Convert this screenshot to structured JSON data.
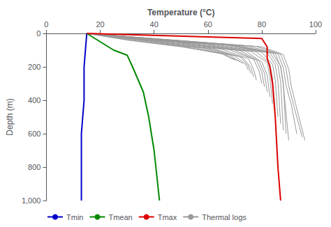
{
  "chart_data": {
    "type": "line",
    "xlabel": "Temperature (°C)",
    "ylabel": "Depth (m)",
    "xlim": [
      0,
      100
    ],
    "ylim": [
      0,
      1000
    ],
    "xticks": [
      0,
      20,
      40,
      60,
      80,
      100
    ],
    "yticks": [
      0,
      200,
      400,
      600,
      800,
      {
        "value": 1000,
        "label": "1,000"
      }
    ],
    "log": false,
    "grid": false,
    "legend": "lower left",
    "series": [
      {
        "name": "Tmin",
        "color": "#0000CC",
        "x": [
          15,
          14,
          14,
          13,
          13,
          13
        ],
        "values": [
          0,
          200,
          400,
          600,
          800,
          1000
        ]
      },
      {
        "name": "Tmean",
        "color": "#008800",
        "x": [
          15,
          25,
          30,
          32,
          36,
          38,
          40,
          42
        ],
        "values": [
          0,
          100,
          130,
          200,
          350,
          500,
          700,
          1000
        ]
      },
      {
        "name": "Tmax",
        "color": "#DD0000",
        "x": [
          15,
          80,
          82,
          82,
          83,
          84,
          85,
          86,
          87
        ],
        "values": [
          0,
          30,
          80,
          150,
          200,
          300,
          500,
          800,
          1000
        ]
      },
      {
        "name": "Thermal logs",
        "color": "#999999",
        "x": [
          15,
          30,
          50,
          65,
          70
        ],
        "values": [
          0,
          40,
          80,
          120,
          160
        ]
      },
      {
        "name": "Thermal logs",
        "color": "#999999",
        "x": [
          15,
          32,
          52,
          66,
          72
        ],
        "values": [
          0,
          42,
          82,
          125,
          170
        ]
      },
      {
        "name": "Thermal logs",
        "color": "#999999",
        "x": [
          15,
          35,
          55,
          68,
          73
        ],
        "values": [
          0,
          44,
          85,
          130,
          180
        ]
      },
      {
        "name": "Thermal logs",
        "color": "#999999",
        "x": [
          15,
          38,
          58,
          70,
          74,
          75
        ],
        "values": [
          0,
          46,
          88,
          135,
          185,
          220
        ]
      },
      {
        "name": "Thermal logs",
        "color": "#999999",
        "x": [
          15,
          40,
          60,
          72,
          75,
          76
        ],
        "values": [
          0,
          48,
          90,
          140,
          195,
          240
        ]
      },
      {
        "name": "Thermal logs",
        "color": "#999999",
        "x": [
          15,
          42,
          62,
          73,
          76,
          77
        ],
        "values": [
          0,
          50,
          92,
          145,
          205,
          260
        ]
      },
      {
        "name": "Thermal logs",
        "color": "#999999",
        "x": [
          15,
          45,
          65,
          75,
          77,
          78
        ],
        "values": [
          0,
          52,
          95,
          150,
          215,
          280
        ]
      },
      {
        "name": "Thermal logs",
        "color": "#999999",
        "x": [
          15,
          48,
          68,
          77,
          79,
          80
        ],
        "values": [
          0,
          54,
          98,
          155,
          225,
          300
        ]
      },
      {
        "name": "Thermal logs",
        "color": "#999999",
        "x": [
          15,
          50,
          70,
          78,
          80,
          81
        ],
        "values": [
          0,
          56,
          100,
          160,
          230,
          320
        ]
      },
      {
        "name": "Thermal logs",
        "color": "#999999",
        "x": [
          15,
          52,
          72,
          79,
          81,
          82
        ],
        "values": [
          0,
          58,
          103,
          165,
          240,
          350
        ]
      },
      {
        "name": "Thermal logs",
        "color": "#999999",
        "x": [
          15,
          55,
          74,
          80,
          82,
          83
        ],
        "values": [
          0,
          60,
          106,
          170,
          250,
          380
        ]
      },
      {
        "name": "Thermal logs",
        "color": "#999999",
        "x": [
          15,
          58,
          76,
          82,
          83,
          84
        ],
        "values": [
          0,
          62,
          108,
          175,
          260,
          420
        ]
      },
      {
        "name": "Thermal logs",
        "color": "#999999",
        "x": [
          15,
          60,
          78,
          83,
          84,
          85
        ],
        "values": [
          0,
          64,
          110,
          180,
          270,
          460
        ]
      },
      {
        "name": "Thermal logs",
        "color": "#999999",
        "x": [
          15,
          63,
          80,
          84,
          85,
          86
        ],
        "values": [
          0,
          66,
          112,
          185,
          280,
          500
        ]
      },
      {
        "name": "Thermal logs",
        "color": "#999999",
        "x": [
          15,
          66,
          82,
          85,
          86,
          87
        ],
        "values": [
          0,
          68,
          114,
          188,
          285,
          540
        ]
      },
      {
        "name": "Thermal logs",
        "color": "#999999",
        "x": [
          15,
          68,
          83,
          86,
          87,
          88
        ],
        "values": [
          0,
          70,
          116,
          190,
          290,
          580
        ]
      },
      {
        "name": "Thermal logs",
        "color": "#999999",
        "x": [
          15,
          70,
          84,
          87,
          88,
          89
        ],
        "values": [
          0,
          72,
          118,
          195,
          300,
          600
        ]
      },
      {
        "name": "Thermal logs",
        "color": "#999999",
        "x": [
          15,
          72,
          85,
          87,
          88,
          90
        ],
        "values": [
          0,
          74,
          120,
          200,
          310,
          640
        ]
      },
      {
        "name": "Thermal logs",
        "color": "#999999",
        "x": [
          15,
          75,
          86,
          88,
          89,
          91,
          93
        ],
        "values": [
          0,
          76,
          122,
          205,
          310,
          430,
          600
        ]
      },
      {
        "name": "Thermal logs",
        "color": "#999999",
        "x": [
          15,
          78,
          87,
          89,
          90,
          92,
          95
        ],
        "values": [
          0,
          78,
          124,
          210,
          315,
          440,
          620
        ]
      },
      {
        "name": "Thermal logs",
        "color": "#999999",
        "x": [
          15,
          80,
          88,
          90,
          91,
          93,
          96
        ],
        "values": [
          0,
          80,
          126,
          215,
          320,
          450,
          640
        ]
      }
    ]
  }
}
